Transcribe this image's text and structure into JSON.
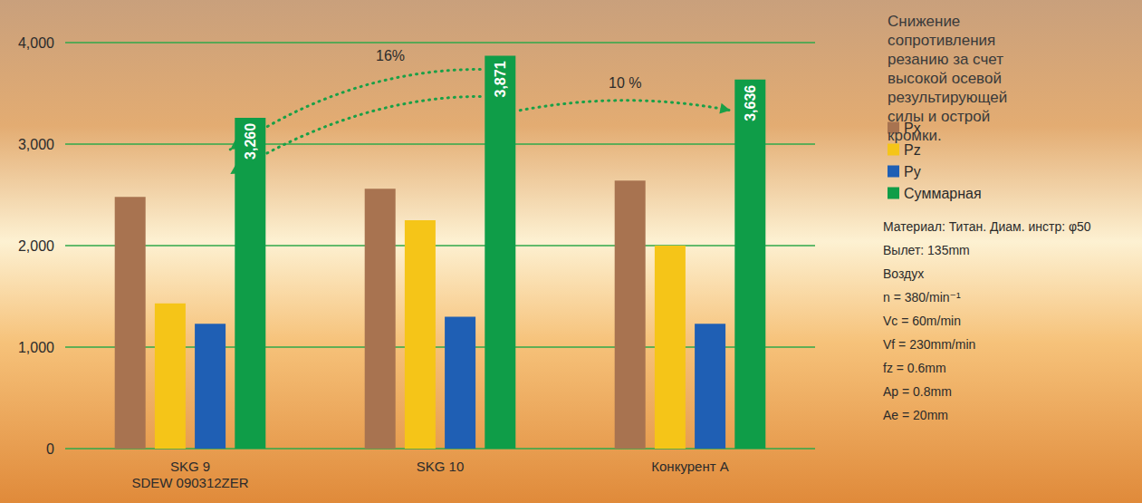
{
  "chart_data": {
    "type": "bar",
    "title": "Снижение сопротивления резанию за счет высокой осевой результирующей силы и острой кромки.",
    "categories": [
      "SKG 9\nSDEW 090312ZER",
      "SKG 10",
      "Конкурент A"
    ],
    "series": [
      {
        "name": "Px",
        "color": "#a87350",
        "values": [
          2480,
          2560,
          2640
        ]
      },
      {
        "name": "Pz",
        "color": "#f5c518",
        "values": [
          1430,
          2250,
          2000
        ]
      },
      {
        "name": "Py",
        "color": "#1f5fb4",
        "values": [
          1230,
          1300,
          1230
        ]
      },
      {
        "name": "Суммарная",
        "color": "#0f9d48",
        "values": [
          3260,
          3871,
          3636
        ],
        "value_labels": [
          "3,260",
          "3,871",
          "3,636"
        ],
        "data_labels": true
      }
    ],
    "ylim": [
      0,
      4000
    ],
    "yticks": [
      0,
      {
        "value": 1000,
        "label": "1,000"
      },
      {
        "value": 2000,
        "label": "2,000"
      },
      {
        "value": 3000,
        "label": "3,000"
      },
      {
        "value": 4000,
        "label": "4,000"
      }
    ],
    "grid": true,
    "legend": "right",
    "annotations": [
      "16%",
      "10 %"
    ],
    "conditions": [
      "Материал: Титан. Диам. инстр: φ50",
      "Вылет: 135mm",
      "Воздух",
      "n = 380/min⁻¹",
      "Vc = 60m/min",
      "Vf = 230mm/min",
      "fz = 0.6mm",
      "Ap = 0.8mm",
      "Ae = 20mm"
    ]
  }
}
